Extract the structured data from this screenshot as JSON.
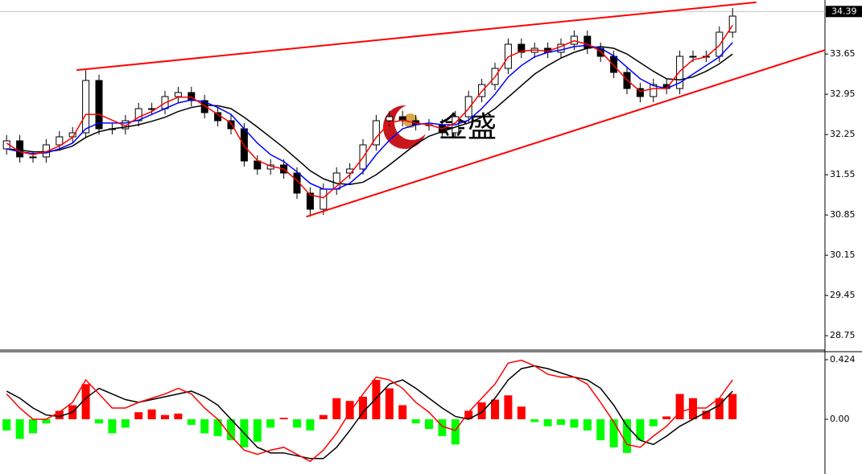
{
  "watermark": "金盛",
  "chart_data": [
    {
      "type": "candlestick",
      "xlim": [
        -0.5,
        62
      ],
      "ylim": [
        28.5,
        34.59
      ],
      "yticks": [
        33.65,
        32.95,
        32.25,
        31.55,
        30.85,
        30.15,
        29.45,
        28.75
      ],
      "last_price": 34.39,
      "up_color": "#ffffff",
      "down_color": "#000000",
      "open": [
        32.0,
        32.14,
        31.86,
        31.86,
        32.07,
        32.21,
        32.28,
        33.19,
        32.35,
        32.35,
        32.49,
        32.7,
        32.7,
        32.91,
        32.98,
        32.84,
        32.63,
        32.49,
        32.35,
        31.79,
        31.65,
        31.72,
        31.58,
        31.23,
        30.95,
        31.3,
        31.58,
        31.65,
        32.07,
        32.49,
        32.56,
        32.49,
        32.42,
        32.42,
        32.28,
        32.56,
        32.91,
        33.12,
        33.4,
        33.82,
        33.68,
        33.75,
        33.68,
        33.82,
        33.96,
        33.75,
        33.61,
        33.33,
        33.05,
        32.91,
        33.12,
        33.05,
        33.61,
        33.61,
        33.61,
        34.03
      ],
      "high": [
        32.24,
        32.24,
        31.96,
        32.17,
        32.31,
        32.38,
        33.37,
        33.29,
        32.45,
        32.59,
        32.8,
        32.8,
        33.01,
        33.08,
        33.08,
        32.94,
        32.73,
        32.59,
        32.45,
        31.89,
        31.82,
        31.82,
        31.68,
        31.33,
        31.4,
        31.68,
        31.75,
        32.17,
        32.59,
        32.66,
        32.66,
        32.59,
        32.52,
        32.52,
        32.66,
        33.01,
        33.22,
        33.5,
        33.92,
        33.92,
        33.85,
        33.85,
        33.92,
        34.06,
        34.06,
        33.85,
        33.71,
        33.43,
        33.15,
        33.22,
        33.22,
        33.71,
        33.71,
        33.71,
        34.13,
        34.45
      ],
      "low": [
        31.9,
        31.76,
        31.76,
        31.76,
        31.97,
        32.11,
        32.18,
        32.25,
        32.25,
        32.25,
        32.39,
        32.6,
        32.6,
        32.81,
        32.74,
        32.53,
        32.39,
        32.25,
        31.69,
        31.55,
        31.55,
        31.48,
        31.13,
        30.82,
        30.85,
        31.2,
        31.48,
        31.55,
        31.97,
        32.39,
        32.39,
        32.32,
        32.32,
        32.18,
        32.18,
        32.46,
        32.81,
        33.02,
        33.3,
        33.58,
        33.58,
        33.58,
        33.58,
        33.72,
        33.65,
        33.51,
        33.23,
        32.95,
        32.81,
        32.81,
        32.95,
        32.95,
        33.51,
        33.51,
        33.51,
        33.93
      ],
      "close": [
        32.14,
        31.86,
        31.86,
        32.07,
        32.21,
        32.28,
        33.19,
        32.35,
        32.35,
        32.49,
        32.7,
        32.7,
        32.91,
        32.98,
        32.84,
        32.63,
        32.49,
        32.35,
        31.79,
        31.65,
        31.72,
        31.58,
        31.23,
        30.95,
        31.3,
        31.58,
        31.65,
        32.07,
        32.49,
        32.56,
        32.49,
        32.42,
        32.42,
        32.28,
        32.56,
        32.91,
        33.12,
        33.4,
        33.82,
        33.68,
        33.75,
        33.68,
        33.82,
        33.96,
        33.75,
        33.61,
        33.33,
        33.05,
        32.91,
        33.12,
        33.05,
        33.61,
        33.61,
        33.61,
        34.03,
        34.31
      ],
      "series": [
        {
          "color": "#000000",
          "values": [
            32.0,
            31.98,
            31.95,
            31.95,
            31.98,
            32.05,
            32.2,
            32.3,
            32.35,
            32.38,
            32.42,
            32.48,
            32.55,
            32.65,
            32.72,
            32.76,
            32.75,
            32.7,
            32.55,
            32.38,
            32.2,
            32.02,
            31.82,
            31.62,
            31.48,
            31.4,
            31.38,
            31.42,
            31.55,
            31.72,
            31.9,
            32.08,
            32.22,
            32.3,
            32.38,
            32.45,
            32.55,
            32.7,
            32.9,
            33.1,
            33.3,
            33.45,
            33.58,
            33.68,
            33.75,
            33.78,
            33.75,
            33.65,
            33.5,
            33.35,
            33.22,
            33.2,
            33.25,
            33.35,
            33.48,
            33.65
          ]
        },
        {
          "color": "#0000ff",
          "values": [
            32.0,
            31.95,
            31.92,
            31.93,
            32.0,
            32.1,
            32.35,
            32.45,
            32.45,
            32.45,
            32.5,
            32.6,
            32.7,
            32.8,
            32.85,
            32.82,
            32.72,
            32.6,
            32.35,
            32.1,
            31.9,
            31.78,
            31.6,
            31.4,
            31.3,
            31.3,
            31.4,
            31.6,
            31.9,
            32.15,
            32.35,
            32.42,
            32.45,
            32.42,
            32.42,
            32.5,
            32.7,
            32.95,
            33.25,
            33.45,
            33.6,
            33.68,
            33.72,
            33.78,
            33.8,
            33.75,
            33.62,
            33.42,
            33.22,
            33.1,
            33.05,
            33.15,
            33.3,
            33.45,
            33.6,
            33.85
          ]
        },
        {
          "color": "#ff0000",
          "values": [
            32.1,
            31.95,
            31.9,
            31.95,
            32.05,
            32.2,
            32.6,
            32.6,
            32.5,
            32.4,
            32.55,
            32.65,
            32.8,
            32.9,
            32.9,
            32.75,
            32.6,
            32.45,
            32.05,
            31.8,
            31.7,
            31.65,
            31.45,
            31.2,
            31.15,
            31.35,
            31.55,
            31.85,
            32.2,
            32.45,
            32.5,
            32.45,
            32.42,
            32.35,
            32.45,
            32.7,
            33.0,
            33.25,
            33.6,
            33.7,
            33.72,
            33.7,
            33.78,
            33.88,
            33.82,
            33.7,
            33.45,
            33.2,
            33.0,
            33.05,
            33.05,
            33.35,
            33.55,
            33.6,
            33.8,
            34.15
          ]
        }
      ],
      "trendlines": [
        {
          "color": "#ff0000",
          "x": [
            5.3,
            56.8
          ],
          "y": [
            33.37,
            34.55
          ]
        },
        {
          "color": "#ff0000",
          "x": [
            22.7,
            62
          ],
          "y": [
            30.82,
            33.72
          ]
        }
      ]
    },
    {
      "type": "macd",
      "xlim": [
        -0.5,
        62
      ],
      "ylim": [
        -0.39,
        0.481
      ],
      "yticks": [
        0.424,
        {
          "value": 0,
          "label": "0.00"
        }
      ],
      "up_color": "#ff0000",
      "down_color": "#00ff00",
      "values": [
        -0.08,
        -0.14,
        -0.1,
        -0.03,
        0.06,
        0.1,
        0.25,
        -0.03,
        -0.1,
        -0.06,
        0.05,
        0.07,
        0.03,
        0.04,
        -0.04,
        -0.1,
        -0.12,
        -0.15,
        -0.2,
        -0.16,
        -0.06,
        0.01,
        -0.06,
        -0.08,
        0.03,
        0.15,
        0.13,
        0.16,
        0.28,
        0.22,
        0.1,
        -0.03,
        -0.07,
        -0.12,
        -0.18,
        0.06,
        0.12,
        0.14,
        0.17,
        0.09,
        -0.02,
        -0.05,
        -0.04,
        -0.06,
        -0.08,
        -0.15,
        -0.2,
        -0.24,
        -0.15,
        -0.05,
        0.02,
        0.18,
        0.15,
        0.06,
        0.15,
        0.18
      ],
      "series": [
        {
          "color": "#000000",
          "values": [
            0.2,
            0.15,
            0.08,
            0.03,
            0.02,
            0.05,
            0.15,
            0.22,
            0.18,
            0.14,
            0.12,
            0.14,
            0.16,
            0.18,
            0.2,
            0.16,
            0.1,
            0.0,
            -0.1,
            -0.2,
            -0.24,
            -0.24,
            -0.26,
            -0.28,
            -0.28,
            -0.2,
            -0.08,
            0.05,
            0.15,
            0.25,
            0.28,
            0.22,
            0.15,
            0.08,
            0.02,
            0.0,
            0.05,
            0.15,
            0.28,
            0.36,
            0.38,
            0.36,
            0.33,
            0.3,
            0.28,
            0.22,
            0.1,
            -0.05,
            -0.15,
            -0.18,
            -0.12,
            -0.05,
            0.0,
            0.05,
            0.1,
            0.2
          ]
        },
        {
          "color": "#ff0000",
          "values": [
            0.18,
            0.08,
            0.0,
            0.0,
            0.05,
            0.12,
            0.28,
            0.18,
            0.08,
            0.08,
            0.12,
            0.15,
            0.18,
            0.22,
            0.18,
            0.08,
            0.0,
            -0.12,
            -0.22,
            -0.25,
            -0.22,
            -0.2,
            -0.25,
            -0.3,
            -0.22,
            -0.1,
            0.05,
            0.18,
            0.3,
            0.28,
            0.22,
            0.12,
            0.05,
            -0.05,
            -0.08,
            0.05,
            0.15,
            0.25,
            0.4,
            0.42,
            0.38,
            0.32,
            0.3,
            0.3,
            0.25,
            0.12,
            -0.02,
            -0.18,
            -0.2,
            -0.12,
            -0.05,
            0.05,
            0.08,
            0.08,
            0.15,
            0.28
          ]
        }
      ]
    }
  ]
}
